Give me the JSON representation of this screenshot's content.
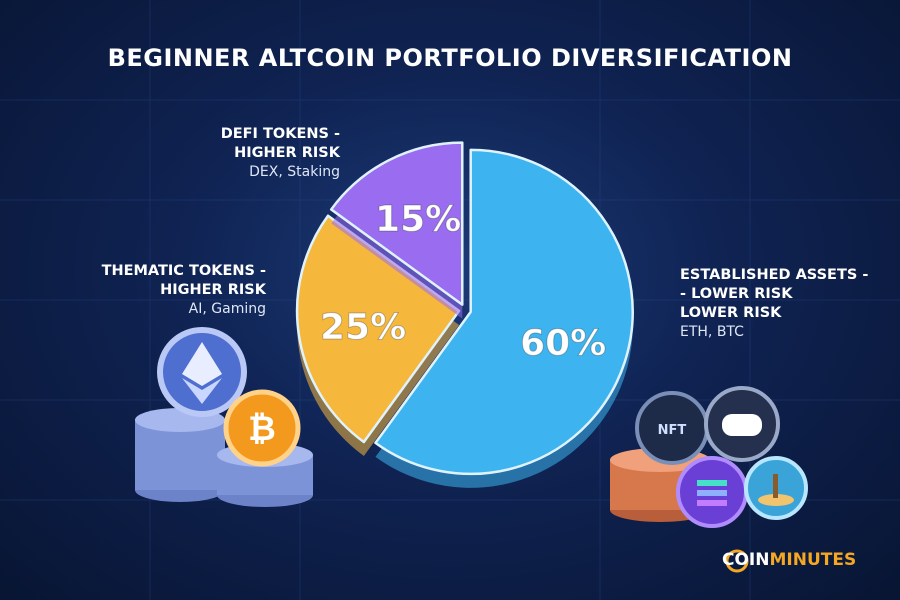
{
  "chart_data": {
    "type": "pie",
    "title": "BEGINNER ALTCOIN PORTFOLIO DIVERSIFICATION",
    "categories": [
      "ESTABLISHED ASSETS -\n- LOWER RISK\nLOWER RISK",
      "THEMATIC TOKENS -\nHIGHER RISK",
      "DEFI TOKENS -\nHIGHER RISK"
    ],
    "descriptions": [
      "ETH, BTC",
      "AI, Gaming",
      "DEX, Staking"
    ],
    "values": [
      60,
      25,
      15
    ],
    "value_labels": [
      "60%",
      "25%",
      "15%"
    ],
    "colors": [
      "#3db4ef",
      "#f6b83c",
      "#9a6cf0"
    ]
  },
  "brand": {
    "first": "COIN",
    "second": "MINUTES"
  }
}
